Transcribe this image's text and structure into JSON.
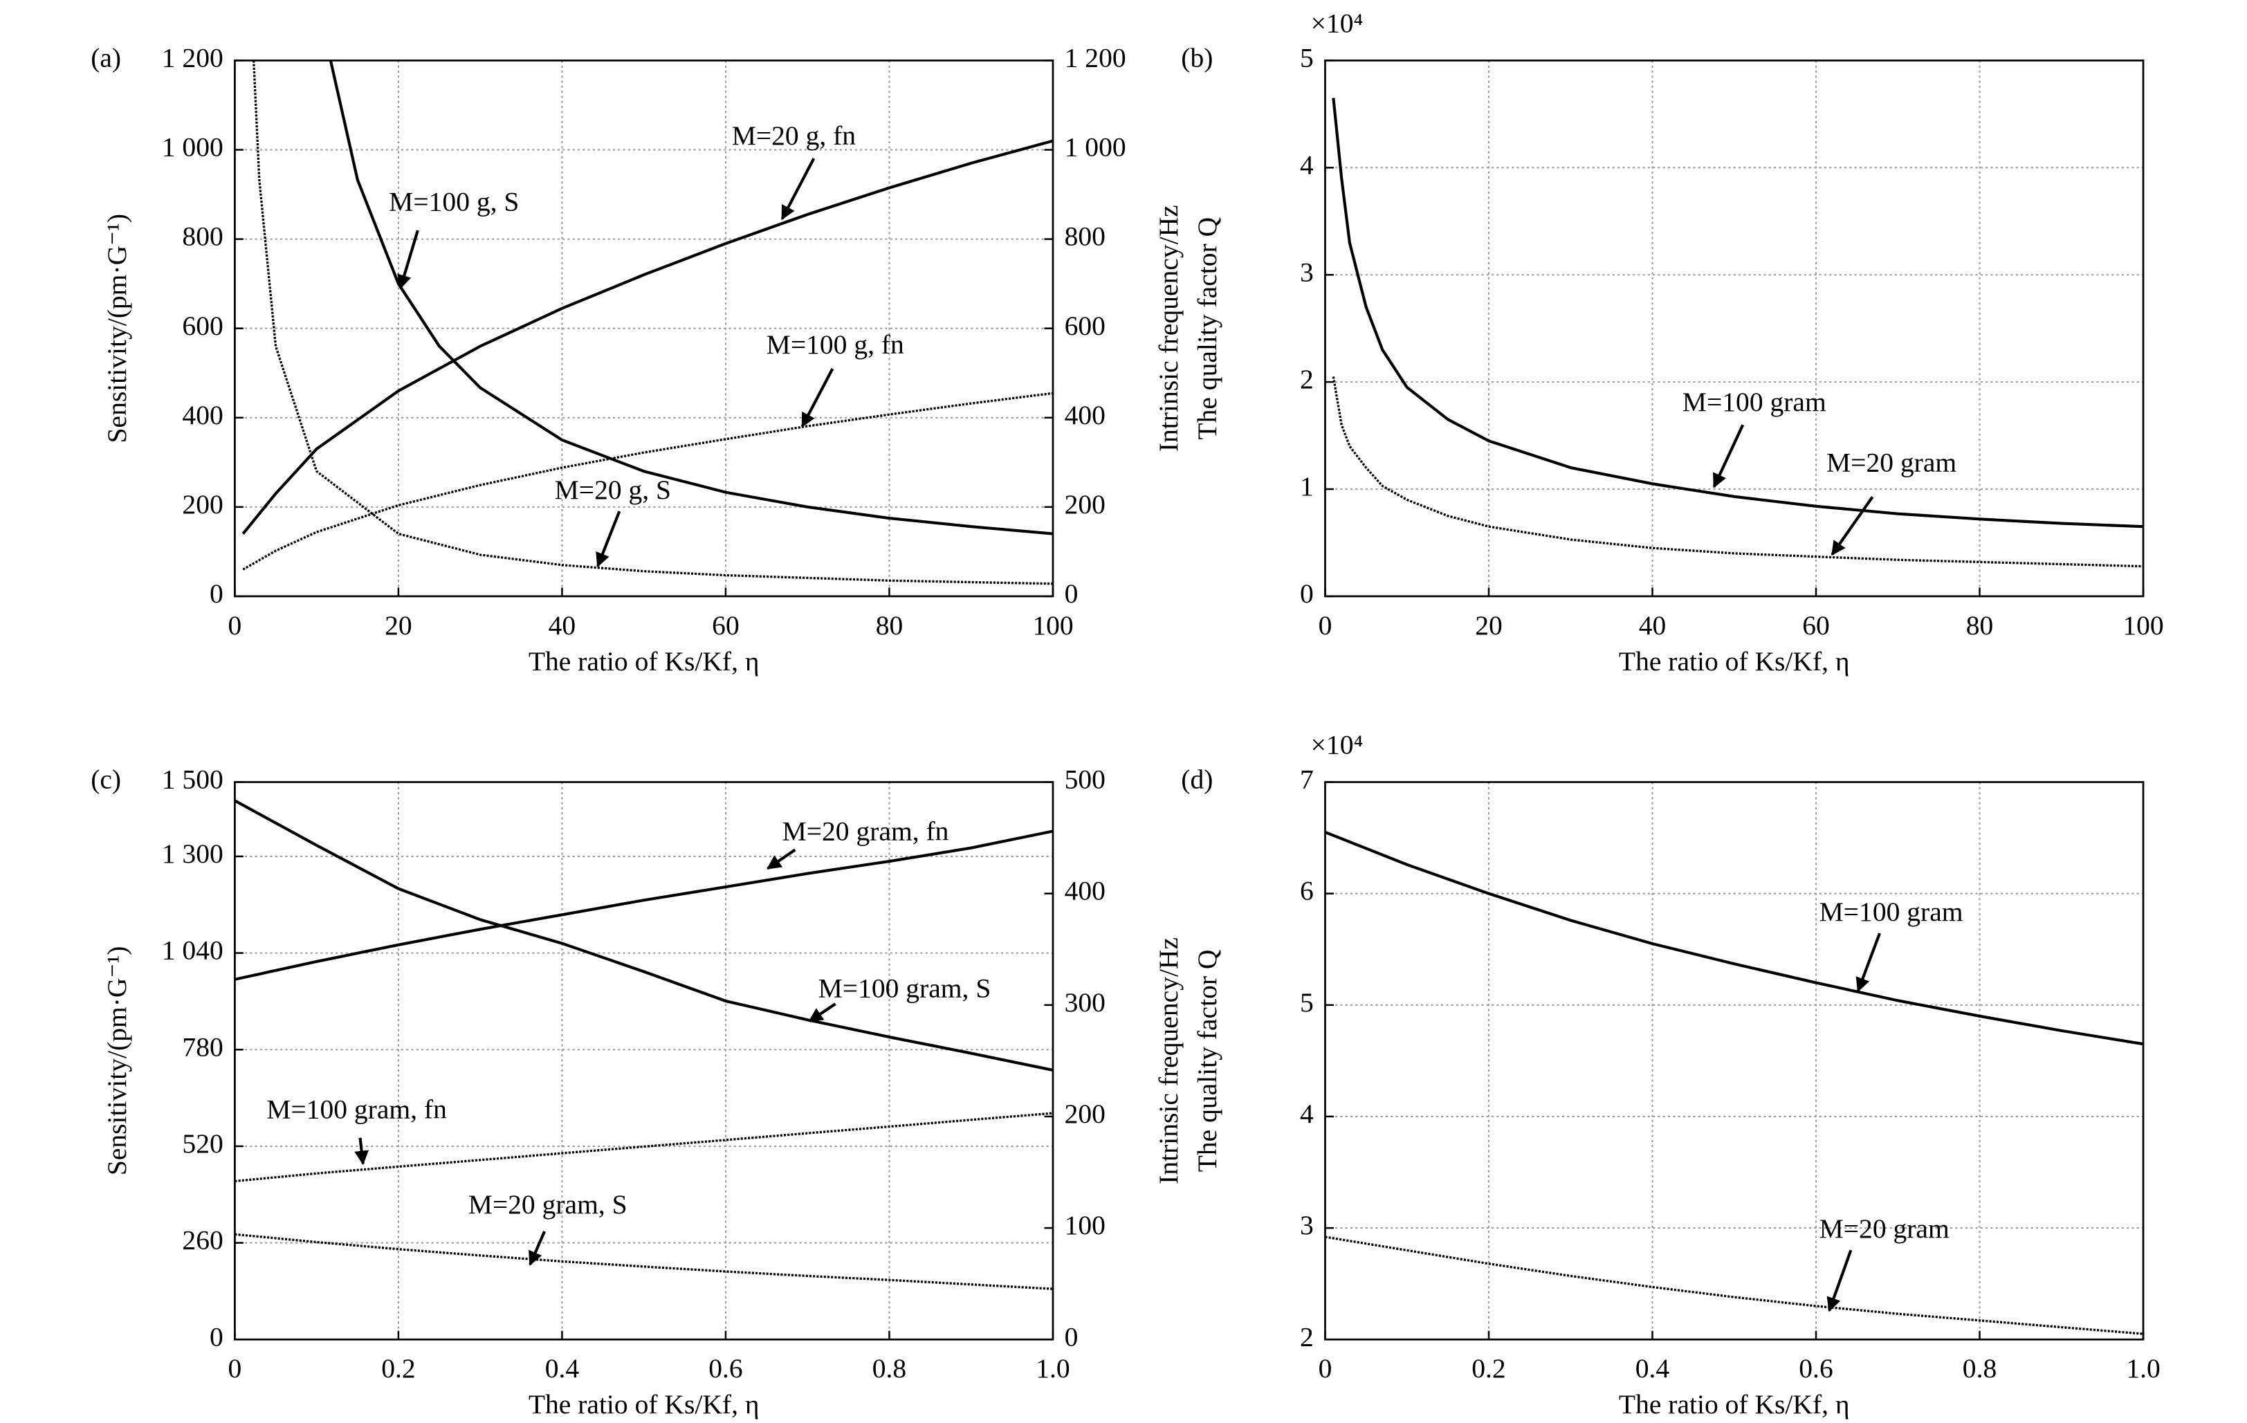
{
  "chart_data": [
    {
      "type": "line",
      "label": "(a)",
      "xlabel": "The ratio of Ks/Kf, η",
      "ylabel": "Sensitivity/(pm·G⁻¹)",
      "y2label": "Intrinsic frequency/Hz",
      "xlim": [
        0,
        100
      ],
      "xticks": [
        0,
        20,
        40,
        60,
        80,
        100
      ],
      "ylim": [
        0,
        1200
      ],
      "yticks": [
        0,
        200,
        400,
        600,
        800,
        {
          "value": 1000,
          "label": "1 000"
        },
        {
          "value": 1200,
          "label": "1 200"
        }
      ],
      "y2lim": [
        0,
        1200
      ],
      "y2ticks": [
        0,
        200,
        400,
        600,
        800,
        {
          "value": 1000,
          "label": "1 000"
        },
        {
          "value": 1200,
          "label": "1 200"
        }
      ],
      "grid": true,
      "series": [
        {
          "name": "M=100 g, S",
          "color": "#000000",
          "style": "solid",
          "x": [
            11.7,
            15,
            20,
            25,
            30,
            40,
            50,
            60,
            70,
            80,
            90,
            100
          ],
          "values": [
            1200,
            933,
            700,
            560,
            467,
            350,
            280,
            233,
            200,
            175,
            156,
            140
          ]
        },
        {
          "name": "M=20 g, S",
          "color": "#000000",
          "style": "dotted",
          "x": [
            2.3,
            3,
            5,
            10,
            20,
            30,
            40,
            50,
            60,
            80,
            100
          ],
          "values": [
            1200,
            933,
            560,
            280,
            140,
            93,
            70,
            56,
            47,
            35,
            28
          ]
        },
        {
          "name": "M=20 g, fn",
          "color": "#000000",
          "style": "solid",
          "axis": "y2",
          "x": [
            1,
            5,
            10,
            20,
            30,
            40,
            50,
            60,
            70,
            80,
            90,
            100
          ],
          "values": [
            140,
            230,
            330,
            460,
            560,
            645,
            720,
            790,
            855,
            915,
            970,
            1020
          ]
        },
        {
          "name": "M=100 g, fn",
          "color": "#000000",
          "style": "dotted",
          "axis": "y2",
          "x": [
            1,
            5,
            10,
            20,
            30,
            40,
            50,
            60,
            70,
            80,
            90,
            100
          ],
          "values": [
            60,
            102,
            144,
            204,
            249,
            288,
            322,
            352,
            381,
            407,
            432,
            455
          ]
        }
      ]
    },
    {
      "type": "line",
      "label": "(b)",
      "multiplier": "×10⁴",
      "xlabel": "The ratio of Ks/Kf, η",
      "ylabel": "The quality factor Q",
      "xlim": [
        0,
        100
      ],
      "xticks": [
        0,
        20,
        40,
        60,
        80,
        100
      ],
      "ylim": [
        0,
        5
      ],
      "yticks": [
        0,
        1,
        2,
        3,
        4,
        5
      ],
      "grid": true,
      "series": [
        {
          "name": "M=100 gram",
          "color": "#000000",
          "style": "solid",
          "x": [
            1,
            2,
            3,
            5,
            7,
            10,
            15,
            20,
            30,
            40,
            50,
            60,
            70,
            80,
            90,
            100
          ],
          "values": [
            4.65,
            3.9,
            3.3,
            2.7,
            2.3,
            1.95,
            1.65,
            1.45,
            1.2,
            1.05,
            0.93,
            0.84,
            0.77,
            0.72,
            0.68,
            0.65
          ]
        },
        {
          "name": "M=20 gram",
          "color": "#000000",
          "style": "dotted",
          "x": [
            1,
            2,
            3,
            5,
            7,
            10,
            15,
            20,
            30,
            40,
            50,
            60,
            70,
            80,
            90,
            100
          ],
          "values": [
            2.05,
            1.6,
            1.4,
            1.2,
            1.03,
            0.9,
            0.75,
            0.65,
            0.53,
            0.45,
            0.4,
            0.37,
            0.34,
            0.32,
            0.3,
            0.28
          ]
        }
      ]
    },
    {
      "type": "line",
      "label": "(c)",
      "xlabel": "The ratio of Ks/Kf, η",
      "ylabel": "Sensitivity/(pm·G⁻¹)",
      "y2label": "Intrinsic frequency/Hz",
      "xlim": [
        0,
        1
      ],
      "xticks": [
        0,
        0.2,
        0.4,
        0.6,
        0.8,
        {
          "value": 1,
          "label": "1.0"
        }
      ],
      "ylim": [
        0,
        1500
      ],
      "yticks": [
        0,
        260,
        520,
        780,
        {
          "value": 1040,
          "label": "1 040"
        },
        {
          "value": 1300,
          "label": "1 300"
        },
        {
          "value": 1500,
          "label": "1 500"
        }
      ],
      "y2lim": [
        0,
        500
      ],
      "y2ticks": [
        0,
        100,
        200,
        300,
        400,
        500
      ],
      "grid": true,
      "series": [
        {
          "name": "M=100 gram, S",
          "color": "#000000",
          "style": "solid",
          "x": [
            0,
            0.1,
            0.2,
            0.3,
            0.4,
            0.5,
            0.6,
            0.7,
            0.8,
            0.9,
            1
          ],
          "values": [
            1450,
            1330,
            1213,
            1130,
            1066,
            990,
            911,
            860,
            814,
            770,
            725
          ]
        },
        {
          "name": "M=20 gram, fn",
          "color": "#000000",
          "style": "solid",
          "axis": "y2",
          "x": [
            0,
            0.1,
            0.2,
            0.3,
            0.4,
            0.5,
            0.6,
            0.7,
            0.8,
            0.9,
            1
          ],
          "values": [
            323,
            339,
            354,
            368,
            381,
            394,
            406,
            418,
            429,
            441,
            456
          ]
        },
        {
          "name": "M=100 gram, fn",
          "color": "#000000",
          "style": "dotted",
          "axis": "y2",
          "x": [
            0,
            0.1,
            0.2,
            0.3,
            0.4,
            0.5,
            0.6,
            0.7,
            0.8,
            0.9,
            1
          ],
          "values": [
            142,
            149,
            155,
            161,
            167,
            173,
            179,
            185,
            191,
            197,
            203
          ]
        },
        {
          "name": "M=20 gram, S",
          "color": "#000000",
          "style": "dotted",
          "x": [
            0,
            0.1,
            0.2,
            0.3,
            0.4,
            0.5,
            0.6,
            0.7,
            0.8,
            0.9,
            1
          ],
          "values": [
            283,
            262,
            243,
            226,
            210,
            196,
            183,
            171,
            160,
            148,
            136
          ]
        }
      ]
    },
    {
      "type": "line",
      "label": "(d)",
      "multiplier": "×10⁴",
      "xlabel": "The ratio of Ks/Kf, η",
      "ylabel": "The quality factor Q",
      "xlim": [
        0,
        1
      ],
      "xticks": [
        0,
        0.2,
        0.4,
        0.6,
        0.8,
        {
          "value": 1,
          "label": "1.0"
        }
      ],
      "ylim": [
        2,
        7
      ],
      "yticks": [
        2,
        3,
        4,
        5,
        6,
        7
      ],
      "grid": true,
      "series": [
        {
          "name": "M=100 gram",
          "color": "#000000",
          "style": "solid",
          "x": [
            0,
            0.1,
            0.2,
            0.3,
            0.4,
            0.5,
            0.6,
            0.7,
            0.8,
            0.9,
            1
          ],
          "values": [
            6.55,
            6.26,
            6.0,
            5.76,
            5.55,
            5.37,
            5.2,
            5.04,
            4.9,
            4.77,
            4.65
          ]
        },
        {
          "name": "M=20 gram",
          "color": "#000000",
          "style": "dotted",
          "x": [
            0,
            0.1,
            0.2,
            0.3,
            0.4,
            0.5,
            0.6,
            0.7,
            0.8,
            0.9,
            1
          ],
          "values": [
            2.92,
            2.8,
            2.68,
            2.57,
            2.47,
            2.38,
            2.3,
            2.23,
            2.17,
            2.11,
            2.05
          ]
        }
      ]
    }
  ]
}
